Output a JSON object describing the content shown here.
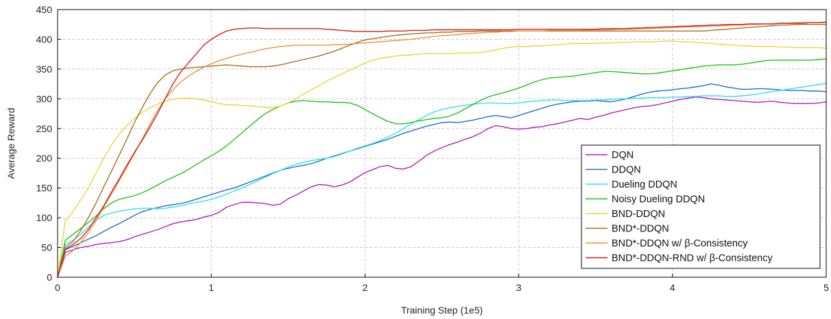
{
  "chart_data": {
    "type": "line",
    "title": "",
    "xlabel": "Training Step (1e5)",
    "ylabel": "Average Reward",
    "xlim": [
      0,
      5
    ],
    "ylim": [
      0,
      450
    ],
    "xticks": [
      0,
      1,
      2,
      3,
      4,
      5
    ],
    "yticks": [
      0,
      50,
      100,
      150,
      200,
      250,
      300,
      350,
      400,
      450
    ],
    "grid": true,
    "legend_position": "lower-right",
    "x": [
      0,
      0.05,
      0.1,
      0.15,
      0.2,
      0.25,
      0.3,
      0.35,
      0.4,
      0.45,
      0.5,
      0.55,
      0.6,
      0.65,
      0.7,
      0.75,
      0.8,
      0.85,
      0.9,
      0.95,
      1.0,
      1.05,
      1.1,
      1.15,
      1.2,
      1.25,
      1.3,
      1.35,
      1.4,
      1.45,
      1.5,
      1.55,
      1.6,
      1.65,
      1.7,
      1.75,
      1.8,
      1.85,
      1.9,
      1.95,
      2.0,
      2.05,
      2.1,
      2.15,
      2.2,
      2.25,
      2.3,
      2.35,
      2.4,
      2.45,
      2.5,
      2.55,
      2.6,
      2.65,
      2.7,
      2.75,
      2.8,
      2.85,
      2.9,
      2.95,
      3.0,
      3.05,
      3.1,
      3.15,
      3.2,
      3.25,
      3.3,
      3.35,
      3.4,
      3.45,
      3.5,
      3.55,
      3.6,
      3.65,
      3.7,
      3.75,
      3.8,
      3.85,
      3.9,
      3.95,
      4.0,
      4.05,
      4.1,
      4.15,
      4.2,
      4.25,
      4.3,
      4.35,
      4.4,
      4.45,
      4.5,
      4.55,
      4.6,
      4.65,
      4.7,
      4.75,
      4.8,
      4.85,
      4.9,
      4.95,
      5.0
    ],
    "series": [
      {
        "name": "DQN",
        "color": "#b01fb8",
        "values": [
          0,
          42,
          46,
          50,
          52,
          55,
          57,
          58,
          60,
          63,
          68,
          72,
          76,
          80,
          85,
          90,
          93,
          95,
          97,
          101,
          104,
          109,
          118,
          122,
          126,
          126,
          125,
          124,
          121,
          123,
          132,
          138,
          145,
          152,
          156,
          155,
          152,
          155,
          160,
          168,
          176,
          181,
          186,
          188,
          183,
          182,
          186,
          195,
          205,
          212,
          218,
          223,
          227,
          232,
          236,
          242,
          250,
          255,
          253,
          250,
          249,
          250,
          252,
          253,
          256,
          258,
          261,
          264,
          267,
          265,
          269,
          272,
          276,
          279,
          282,
          285,
          287,
          288,
          290,
          293,
          296,
          299,
          301,
          303,
          302,
          300,
          299,
          298,
          297,
          296,
          295,
          294,
          295,
          296,
          294,
          293,
          292,
          292,
          292,
          293,
          295
        ]
      },
      {
        "name": "DDQN",
        "color": "#1a6fd1",
        "values": [
          0,
          46,
          52,
          58,
          64,
          70,
          77,
          84,
          90,
          97,
          104,
          110,
          114,
          117,
          120,
          122,
          124,
          127,
          131,
          135,
          139,
          143,
          147,
          150,
          155,
          160,
          165,
          170,
          175,
          180,
          183,
          186,
          188,
          191,
          195,
          200,
          204,
          208,
          212,
          216,
          220,
          224,
          228,
          232,
          237,
          242,
          246,
          250,
          254,
          257,
          260,
          261,
          260,
          262,
          264,
          267,
          270,
          272,
          270,
          268,
          272,
          276,
          280,
          284,
          288,
          291,
          293,
          295,
          296,
          296,
          297,
          296,
          295,
          297,
          300,
          304,
          308,
          311,
          313,
          314,
          315,
          317,
          318,
          320,
          322,
          325,
          323,
          320,
          318,
          316,
          316,
          317,
          317,
          316,
          315,
          314,
          314,
          314,
          313,
          313,
          312
        ]
      },
      {
        "name": "Dueling DDQN",
        "color": "#33e0e6",
        "values": [
          0,
          55,
          62,
          72,
          84,
          96,
          104,
          108,
          111,
          113,
          115,
          116,
          116,
          115,
          116,
          118,
          120,
          123,
          126,
          128,
          131,
          135,
          140,
          145,
          150,
          156,
          162,
          168,
          174,
          180,
          185,
          190,
          193,
          196,
          198,
          200,
          203,
          207,
          212,
          217,
          221,
          225,
          230,
          236,
          242,
          250,
          258,
          265,
          272,
          278,
          282,
          285,
          287,
          289,
          291,
          292,
          293,
          293,
          292,
          292,
          293,
          295,
          296,
          297,
          298,
          298,
          297,
          297,
          297,
          297,
          298,
          298,
          299,
          300,
          300,
          301,
          301,
          302,
          302,
          302,
          303,
          303,
          304,
          304,
          305,
          305,
          305,
          304,
          304,
          305,
          306,
          308,
          310,
          312,
          314,
          316,
          318,
          320,
          322,
          324,
          326
        ]
      },
      {
        "name": "Noisy Dueling DDQN",
        "color": "#22c11a",
        "values": [
          0,
          62,
          72,
          82,
          92,
          103,
          115,
          125,
          131,
          134,
          137,
          142,
          148,
          155,
          162,
          168,
          174,
          181,
          189,
          197,
          204,
          212,
          221,
          232,
          243,
          254,
          265,
          275,
          282,
          288,
          293,
          296,
          297,
          296,
          295,
          295,
          294,
          294,
          293,
          289,
          282,
          275,
          268,
          262,
          258,
          258,
          260,
          263,
          265,
          267,
          268,
          271,
          276,
          283,
          290,
          297,
          303,
          307,
          310,
          314,
          318,
          323,
          328,
          332,
          335,
          336,
          337,
          338,
          340,
          342,
          344,
          346,
          346,
          345,
          344,
          343,
          342,
          342,
          343,
          345,
          347,
          349,
          351,
          353,
          355,
          356,
          357,
          357,
          357,
          358,
          360,
          362,
          364,
          365,
          365,
          365,
          365,
          365,
          365,
          366,
          367
        ]
      },
      {
        "name": "BND-DDQN",
        "color": "#e8d43a",
        "values": [
          0,
          95,
          110,
          130,
          150,
          175,
          200,
          222,
          240,
          255,
          267,
          277,
          285,
          291,
          296,
          299,
          301,
          301,
          300,
          298,
          295,
          292,
          290,
          290,
          289,
          288,
          287,
          286,
          285,
          288,
          293,
          300,
          308,
          315,
          322,
          330,
          336,
          342,
          348,
          354,
          360,
          365,
          368,
          370,
          372,
          373,
          374,
          375,
          376,
          376,
          376,
          376,
          377,
          377,
          377,
          378,
          380,
          382,
          385,
          387,
          388,
          388,
          389,
          389,
          390,
          391,
          392,
          393,
          393,
          393,
          393,
          394,
          394,
          395,
          395,
          396,
          396,
          396,
          396,
          397,
          397,
          396,
          396,
          395,
          394,
          393,
          392,
          391,
          390,
          389,
          389,
          388,
          388,
          388,
          387,
          387,
          386,
          386,
          386,
          386,
          385
        ]
      },
      {
        "name": "BND*-DDQN",
        "color": "#a56f22",
        "values": [
          0,
          50,
          60,
          78,
          100,
          125,
          152,
          178,
          205,
          232,
          260,
          285,
          308,
          327,
          340,
          347,
          350,
          352,
          353,
          354,
          355,
          356,
          357,
          356,
          355,
          354,
          354,
          354,
          355,
          357,
          360,
          363,
          366,
          369,
          372,
          376,
          380,
          385,
          390,
          395,
          399,
          401,
          403,
          405,
          407,
          408,
          409,
          410,
          411,
          411,
          412,
          412,
          413,
          413,
          413,
          414,
          414,
          414,
          414,
          414,
          414,
          414,
          414,
          414,
          414,
          414,
          414,
          414,
          414,
          414,
          414,
          414,
          414,
          414,
          414,
          414,
          414,
          414,
          414,
          414,
          414,
          414,
          414,
          414,
          414,
          415,
          416,
          417,
          418,
          419,
          420,
          421,
          422,
          423,
          424,
          424,
          425,
          425,
          425,
          425,
          425
        ]
      },
      {
        "name": "BND*-DDQN w/ β-Consistency",
        "color": "#e8903a",
        "values": [
          0,
          35,
          45,
          58,
          75,
          95,
          118,
          140,
          162,
          185,
          208,
          232,
          257,
          280,
          300,
          315,
          328,
          338,
          346,
          353,
          359,
          364,
          368,
          372,
          375,
          378,
          381,
          384,
          386,
          388,
          389,
          390,
          390,
          390,
          390,
          390,
          391,
          391,
          392,
          393,
          394,
          395,
          396,
          397,
          398,
          399,
          400,
          402,
          403,
          405,
          406,
          407,
          408,
          409,
          410,
          411,
          412,
          412,
          413,
          413,
          414,
          414,
          414,
          414,
          415,
          415,
          415,
          415,
          415,
          416,
          416,
          416,
          416,
          417,
          417,
          417,
          418,
          418,
          419,
          419,
          420,
          420,
          421,
          421,
          422,
          422,
          423,
          423,
          424,
          424,
          425,
          425,
          426,
          426,
          427,
          427,
          428,
          428,
          428,
          428,
          428
        ]
      },
      {
        "name": "BND*-DDQN-RND w/ β-Consistency",
        "color": "#d41c1c",
        "values": [
          0,
          47,
          55,
          65,
          80,
          100,
          120,
          143,
          165,
          188,
          210,
          230,
          252,
          275,
          300,
          325,
          345,
          360,
          375,
          390,
          400,
          408,
          414,
          417,
          418,
          419,
          419,
          418,
          418,
          418,
          418,
          418,
          418,
          418,
          418,
          417,
          416,
          415,
          414,
          413,
          413,
          413,
          413,
          414,
          414,
          414,
          415,
          415,
          415,
          416,
          416,
          416,
          416,
          416,
          416,
          416,
          416,
          416,
          416,
          416,
          417,
          417,
          417,
          417,
          417,
          417,
          417,
          417,
          417,
          417,
          417,
          418,
          418,
          418,
          418,
          419,
          419,
          420,
          420,
          421,
          421,
          422,
          422,
          423,
          423,
          424,
          424,
          425,
          425,
          425,
          426,
          426,
          426,
          426,
          427,
          427,
          427,
          427,
          428,
          428,
          429
        ]
      }
    ]
  }
}
